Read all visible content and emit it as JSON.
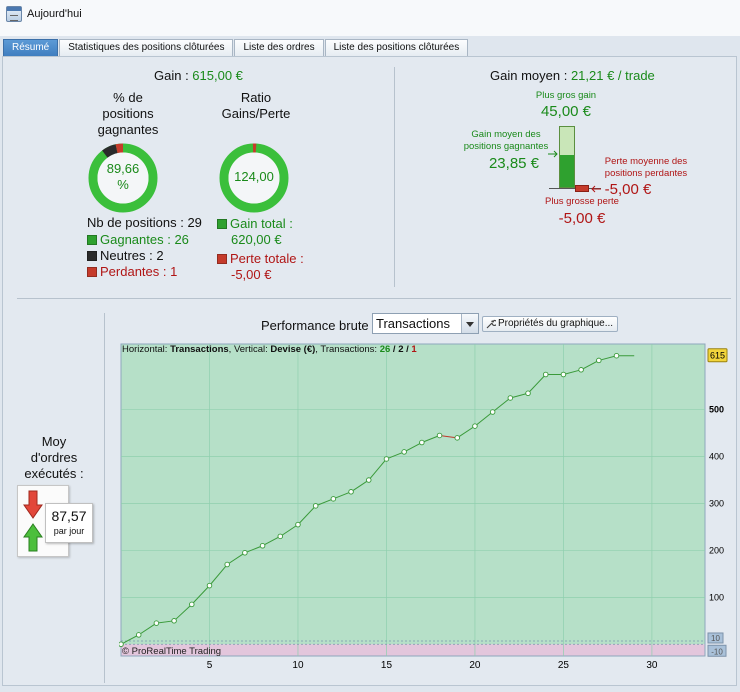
{
  "window": {
    "title": "Aujourd'hui"
  },
  "tabs": [
    {
      "label": "Résumé",
      "active": true
    },
    {
      "label": "Statistiques des positions clôturées",
      "active": false
    },
    {
      "label": "Liste des ordres",
      "active": false
    },
    {
      "label": "Liste des positions clôturées",
      "active": false
    }
  ],
  "summary": {
    "gain_label": "Gain : ",
    "gain_value": "615,00 €",
    "win_pct": {
      "title_line1": "% de",
      "title_line2": "positions",
      "title_line3": "gagnantes",
      "value_line1": "89,66",
      "value_line2": "%",
      "fraction": 0.8966
    },
    "ratio": {
      "title_line1": "Ratio",
      "title_line2": "Gains/Perte",
      "value": "124,00"
    },
    "positions": {
      "total_label": "Nb de positions : 29",
      "winning_label": "Gagnantes : 26",
      "neutral_label": "Neutres : 2",
      "losing_label": "Perdantes : 1"
    },
    "totals": {
      "gain_total_label": "Gain total :",
      "gain_total_value": "620,00 €",
      "loss_total_label": "Perte totale :",
      "loss_total_value": "-5,00 €"
    },
    "avg_gain": {
      "label": "Gain moyen : ",
      "value": "21,21 € / trade",
      "best_label": "Plus gros gain",
      "best_value": "45,00 €",
      "avg_win_label_1": "Gain moyen des",
      "avg_win_label_2": "positions gagnantes",
      "avg_win_value": "23,85 €",
      "avg_loss_label_1": "Perte moyenne des",
      "avg_loss_label_2": "positions perdantes",
      "avg_loss_value": "-5,00 €",
      "worst_label": "Plus grosse perte",
      "worst_value": "-5,00 €"
    }
  },
  "orders": {
    "title_line1": "Moy",
    "title_line2": "d'ordres",
    "title_line3": "exécutés :",
    "value": "87,57",
    "unit": "par jour"
  },
  "performance": {
    "label": "Performance brute",
    "select_value": "Transactions",
    "properties_button": "Propriétés du graphique...",
    "info_prefix_h": "Horizontal: ",
    "info_h": "Transactions",
    "info_prefix_v": ", Vertical: ",
    "info_v": "Devise (€)",
    "info_prefix_t": ", Transactions: ",
    "info_t_win": "26",
    "info_t_sep1": " / ",
    "info_t_neutral": "2",
    "info_t_sep2": " / ",
    "info_t_loss": "1",
    "copyright": "© ProRealTime Trading"
  },
  "colors": {
    "profit_zone": "#b6e0c8",
    "loss_zone": "#e3c6dc",
    "line": "#3a9a3a",
    "loss_segment": "#c0392b",
    "badge_top": "#f2d53c",
    "badge_bottom": "#a9c1d9",
    "win": "#2fa12f",
    "neutral": "#2b2b2b",
    "loss": "#c53b2b"
  },
  "chart_data": {
    "type": "line",
    "xlabel": "Transactions",
    "ylabel": "Devise (€)",
    "xlim": [
      0,
      33
    ],
    "ylim": [
      -25,
      640
    ],
    "x_ticks": [
      5,
      10,
      15,
      20,
      25,
      30
    ],
    "y_ticks": [
      100,
      200,
      300,
      400,
      500
    ],
    "y_tick_labels": [
      "100",
      "200",
      "300",
      "400",
      "500"
    ],
    "x_tick_labels": [
      "5",
      "10",
      "15",
      "20",
      "25",
      "30"
    ],
    "y_bold_tick": "500",
    "last_value_badge": "615",
    "zero_badge": "-10",
    "extra_badge_small": "10",
    "grid": true,
    "series": [
      {
        "x": [
          0,
          1,
          2,
          3,
          4,
          5,
          6,
          7,
          8,
          9,
          10,
          11,
          12,
          13,
          14,
          15,
          16,
          17,
          18,
          19,
          20,
          21,
          22,
          23,
          24,
          25,
          26,
          27,
          28,
          29
        ],
        "values": [
          0,
          20,
          45,
          50,
          85,
          125,
          170,
          195,
          210,
          230,
          255,
          295,
          310,
          325,
          350,
          395,
          410,
          430,
          445,
          440,
          465,
          495,
          525,
          535,
          575,
          575,
          585,
          605,
          615,
          615
        ],
        "losing_segment_index": 18
      }
    ]
  }
}
